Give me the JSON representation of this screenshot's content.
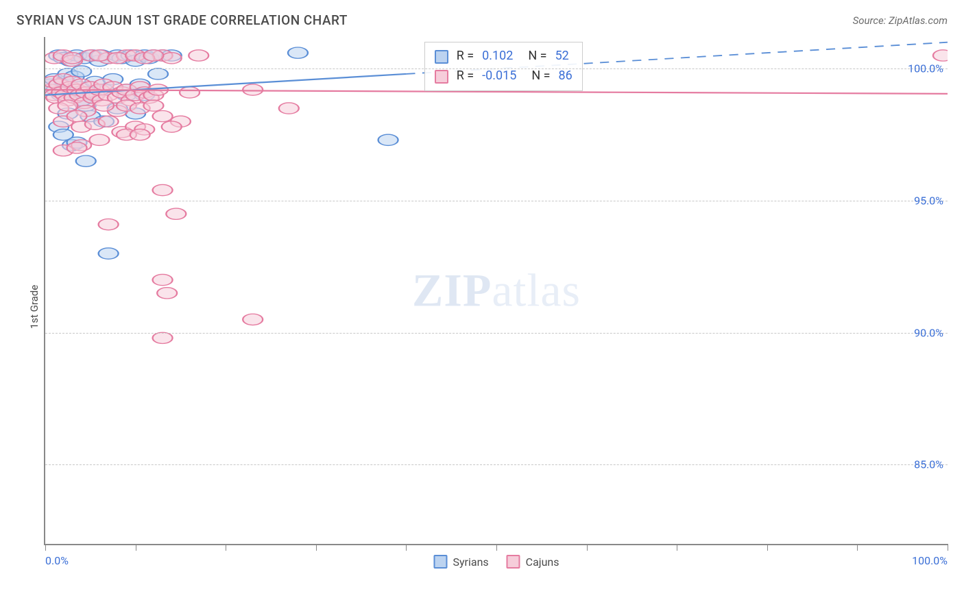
{
  "header": {
    "title": "SYRIAN VS CAJUN 1ST GRADE CORRELATION CHART",
    "source_prefix": "Source: ",
    "source_name": "ZipAtlas.com"
  },
  "chart": {
    "type": "scatter",
    "ylabel": "1st Grade",
    "xlim": [
      0,
      100
    ],
    "ylim": [
      82,
      101.2
    ],
    "xtick_positions": [
      0,
      10,
      20,
      30,
      40,
      50,
      60,
      70,
      80,
      90,
      100
    ],
    "xtick_labels": {
      "0": "0.0%",
      "100": "100.0%"
    },
    "ytick_values": [
      85,
      90,
      95,
      100
    ],
    "ytick_labels": [
      "85.0%",
      "90.0%",
      "95.0%",
      "100.0%"
    ],
    "grid_color": "#c7c7c7",
    "background_color": "#ffffff",
    "marker_radius": 8,
    "series": [
      {
        "name": "Syrians",
        "color_stroke": "#5a8ed6",
        "color_fill": "#bcd3f0",
        "fill_opacity": 0.55,
        "trend": {
          "x1": 0,
          "y1": 99.0,
          "x2": 100,
          "y2": 101.0,
          "solid_until_x": 40
        },
        "points": [
          [
            0.5,
            99.4
          ],
          [
            1,
            99.6
          ],
          [
            1.2,
            99.2
          ],
          [
            1.5,
            100.5
          ],
          [
            1.8,
            99.0
          ],
          [
            2,
            100.4
          ],
          [
            2.2,
            99.5
          ],
          [
            2.5,
            99.8
          ],
          [
            2.8,
            100.3
          ],
          [
            3,
            99.1
          ],
          [
            3.2,
            99.7
          ],
          [
            3.5,
            100.5
          ],
          [
            3.8,
            99.3
          ],
          [
            4,
            99.9
          ],
          [
            4.3,
            100.4
          ],
          [
            4.5,
            98.6
          ],
          [
            5,
            99.0
          ],
          [
            5.2,
            100.5
          ],
          [
            5.5,
            99.5
          ],
          [
            6,
            100.3
          ],
          [
            6.2,
            100.5
          ],
          [
            6.5,
            99.2
          ],
          [
            7,
            100.4
          ],
          [
            7.5,
            99.6
          ],
          [
            8,
            100.5
          ],
          [
            8.5,
            100.4
          ],
          [
            9,
            99.0
          ],
          [
            9.5,
            100.5
          ],
          [
            10,
            100.3
          ],
          [
            10.5,
            99.4
          ],
          [
            11,
            100.5
          ],
          [
            11.5,
            100.4
          ],
          [
            12,
            100.5
          ],
          [
            12.5,
            99.8
          ],
          [
            13,
            100.5
          ],
          [
            3,
            97.1
          ],
          [
            4,
            98.8
          ],
          [
            5,
            98.2
          ],
          [
            8,
            98.5
          ],
          [
            10,
            98.3
          ],
          [
            1.5,
            97.8
          ],
          [
            2.5,
            98.3
          ],
          [
            6.5,
            98.0
          ],
          [
            4.5,
            96.5
          ],
          [
            7,
            93.0
          ],
          [
            2,
            97.5
          ],
          [
            3.5,
            97.2
          ],
          [
            9,
            99.2
          ],
          [
            28,
            100.6
          ],
          [
            38,
            97.3
          ],
          [
            11,
            99.0
          ],
          [
            14,
            100.5
          ]
        ]
      },
      {
        "name": "Cajuns",
        "color_stroke": "#e57ba0",
        "color_fill": "#f6cdda",
        "fill_opacity": 0.55,
        "trend": {
          "x1": 0,
          "y1": 99.2,
          "x2": 100,
          "y2": 99.05,
          "solid_until_x": 100
        },
        "points": [
          [
            0.5,
            99.2
          ],
          [
            0.8,
            99.5
          ],
          [
            1,
            99.0
          ],
          [
            1.2,
            98.9
          ],
          [
            1.5,
            99.4
          ],
          [
            1.8,
            99.1
          ],
          [
            2,
            99.6
          ],
          [
            2.2,
            99.0
          ],
          [
            2.5,
            98.8
          ],
          [
            2.8,
            99.3
          ],
          [
            3,
            99.5
          ],
          [
            3.2,
            98.9
          ],
          [
            3.5,
            99.2
          ],
          [
            3.8,
            99.0
          ],
          [
            4,
            99.4
          ],
          [
            4.3,
            98.7
          ],
          [
            4.5,
            99.1
          ],
          [
            5,
            99.3
          ],
          [
            5.3,
            98.9
          ],
          [
            5.5,
            99.0
          ],
          [
            6,
            99.2
          ],
          [
            6.3,
            98.8
          ],
          [
            6.5,
            99.4
          ],
          [
            7,
            99.0
          ],
          [
            7.5,
            99.3
          ],
          [
            8,
            98.9
          ],
          [
            8.5,
            99.1
          ],
          [
            9,
            99.2
          ],
          [
            9.5,
            98.8
          ],
          [
            10,
            99.0
          ],
          [
            10.5,
            99.3
          ],
          [
            11,
            99.1
          ],
          [
            11.5,
            98.9
          ],
          [
            12,
            99.0
          ],
          [
            12.5,
            99.2
          ],
          [
            13,
            100.5
          ],
          [
            14,
            100.4
          ],
          [
            1,
            100.4
          ],
          [
            2,
            100.5
          ],
          [
            3,
            100.3
          ],
          [
            5,
            100.5
          ],
          [
            7,
            100.4
          ],
          [
            9,
            100.5
          ],
          [
            4,
            97.8
          ],
          [
            5.5,
            97.9
          ],
          [
            7,
            98.0
          ],
          [
            8.5,
            97.6
          ],
          [
            10,
            97.8
          ],
          [
            11,
            97.7
          ],
          [
            13,
            98.2
          ],
          [
            15,
            98.0
          ],
          [
            16,
            99.1
          ],
          [
            17,
            100.5
          ],
          [
            23,
            99.2
          ],
          [
            27,
            98.5
          ],
          [
            4,
            97.1
          ],
          [
            7,
            94.1
          ],
          [
            2,
            96.9
          ],
          [
            9,
            97.5
          ],
          [
            10.5,
            97.5
          ],
          [
            14,
            97.8
          ],
          [
            13,
            95.4
          ],
          [
            14.5,
            94.5
          ],
          [
            13,
            92.0
          ],
          [
            13.5,
            91.5
          ],
          [
            13,
            89.8
          ],
          [
            23,
            90.5
          ],
          [
            3.5,
            97.0
          ],
          [
            6,
            97.3
          ],
          [
            8,
            98.4
          ],
          [
            1.5,
            98.5
          ],
          [
            2.5,
            98.6
          ],
          [
            4.5,
            98.4
          ],
          [
            6.5,
            98.6
          ],
          [
            9,
            98.6
          ],
          [
            10.5,
            98.5
          ],
          [
            12,
            98.6
          ],
          [
            3,
            100.4
          ],
          [
            6,
            100.5
          ],
          [
            8,
            100.4
          ],
          [
            10,
            100.5
          ],
          [
            11,
            100.4
          ],
          [
            12,
            100.5
          ],
          [
            99.5,
            100.5
          ],
          [
            2,
            98.0
          ],
          [
            3.5,
            98.2
          ]
        ]
      }
    ],
    "stats_box": {
      "left_pct": 42,
      "top_pct": 1,
      "rows": [
        {
          "swatch_stroke": "#5a8ed6",
          "swatch_fill": "#bcd3f0",
          "r": "0.102",
          "n": "52"
        },
        {
          "swatch_stroke": "#e57ba0",
          "swatch_fill": "#f6cdda",
          "r": "-0.015",
          "n": "86"
        }
      ]
    },
    "bottom_legend": [
      {
        "label": "Syrians",
        "stroke": "#5a8ed6",
        "fill": "#bcd3f0"
      },
      {
        "label": "Cajuns",
        "stroke": "#e57ba0",
        "fill": "#f6cdda"
      }
    ],
    "watermark": {
      "zip": "ZIP",
      "rest": "atlas"
    }
  }
}
